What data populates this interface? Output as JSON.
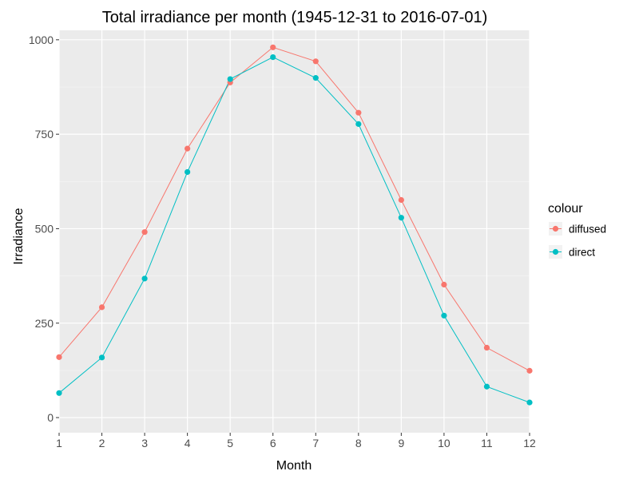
{
  "chart_data": {
    "type": "line",
    "title": "Total irradiance per month (1945-12-31 to 2016-07-01)",
    "xlabel": "Month",
    "ylabel": "Irradiance",
    "x": [
      1,
      2,
      3,
      4,
      5,
      6,
      7,
      8,
      9,
      10,
      11,
      12
    ],
    "xlim": [
      1,
      12
    ],
    "ylim": [
      0,
      1000
    ],
    "yticks": [
      0,
      250,
      500,
      750,
      1000
    ],
    "grid": true,
    "legend": {
      "title": "colour",
      "position": "right"
    },
    "series": [
      {
        "name": "diffused",
        "color": "#F8766D",
        "values": [
          160,
          292,
          491,
          712,
          887,
          980,
          943,
          807,
          576,
          352,
          185,
          124
        ]
      },
      {
        "name": "direct",
        "color": "#00BFC4",
        "values": [
          65,
          159,
          368,
          650,
          896,
          954,
          899,
          777,
          529,
          270,
          82,
          40
        ]
      }
    ]
  }
}
